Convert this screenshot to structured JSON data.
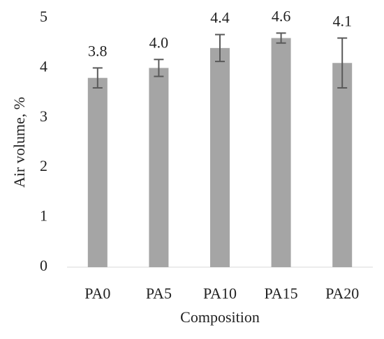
{
  "chart_data": {
    "type": "bar",
    "x_label": "Composition",
    "y_label": "Air volume, %",
    "categories": [
      "PA0",
      "PA5",
      "PA10",
      "PA15",
      "PA20"
    ],
    "values": [
      3.8,
      4.0,
      4.4,
      4.6,
      4.1
    ],
    "value_labels": [
      "3.8",
      "4.0",
      "4.4",
      "4.6",
      "4.1"
    ],
    "errors": [
      0.2,
      0.17,
      0.27,
      0.1,
      0.5
    ],
    "color": "#a5a5a5",
    "error_color": "#595959",
    "ylim": [
      0,
      5
    ],
    "yticks": [
      0,
      1,
      2,
      3,
      4,
      5
    ],
    "grid": false
  }
}
